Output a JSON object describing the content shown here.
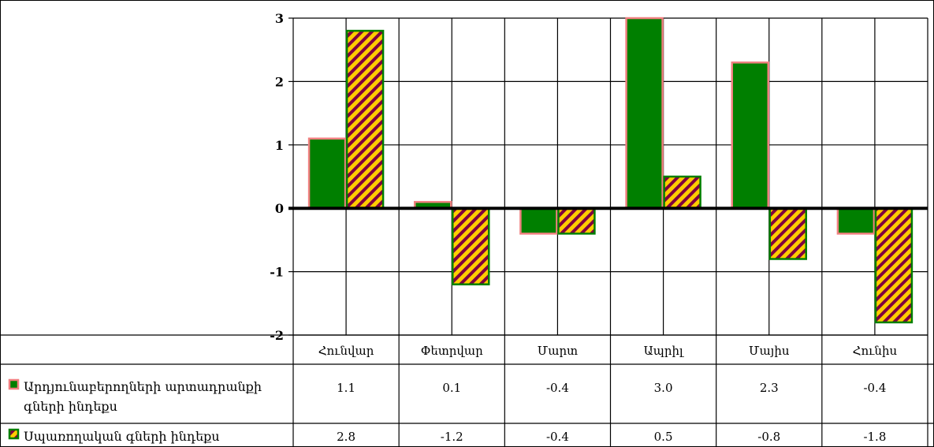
{
  "chart_data": {
    "type": "bar",
    "categories": [
      "Հունվար",
      "Փետրվար",
      "Մարտ",
      "Ապրիլ",
      "Մայիս",
      "Հունիս"
    ],
    "series": [
      {
        "name": "Արդյունաբերողների արտադրանքի գների ինդեքս",
        "values": [
          1.1,
          0.1,
          -0.4,
          3.0,
          2.3,
          -0.4
        ],
        "labels": [
          "1.1",
          "0.1",
          "-0.4",
          "3.0",
          "2.3",
          "-0.4"
        ],
        "fill": "#007F00",
        "stroke": "#F08080"
      },
      {
        "name": "Սպառողական գների ինդեքս",
        "values": [
          2.8,
          -1.2,
          -0.4,
          0.5,
          -0.8,
          -1.8
        ],
        "labels": [
          "2.8",
          "-1.2",
          "-0.4",
          "0.5",
          "-0.8",
          "-1.8"
        ],
        "fill": "#FFCC00",
        "stripe": "#7F003F",
        "stroke": "#007F00"
      }
    ],
    "yticks": [
      "3",
      "2",
      "1",
      "0",
      "-1",
      "-2"
    ],
    "ylim": [
      -2,
      3
    ],
    "grid": true,
    "legend": "data-table"
  }
}
